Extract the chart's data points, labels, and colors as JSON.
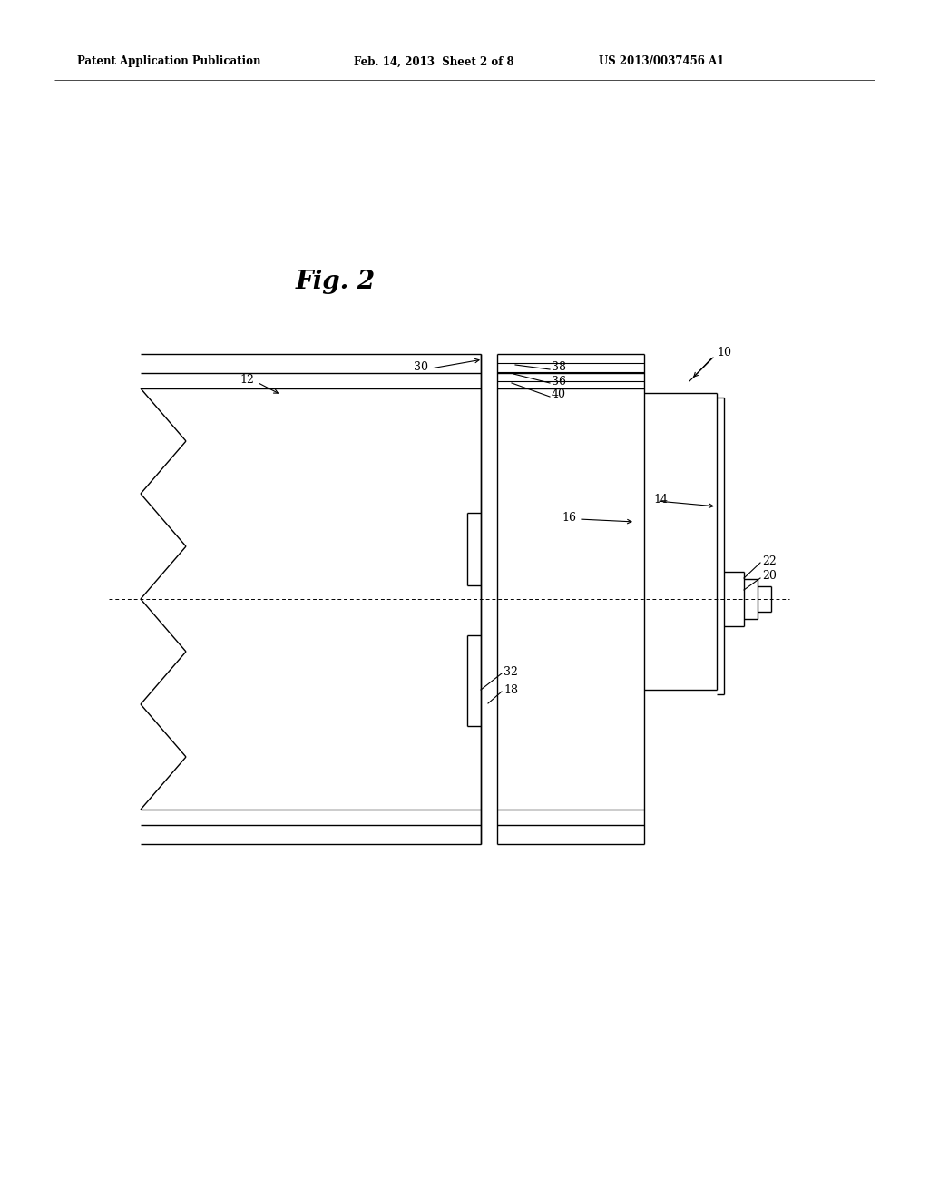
{
  "bg_color": "#ffffff",
  "line_color": "#000000",
  "header_left": "Patent Application Publication",
  "header_mid": "Feb. 14, 2013  Sheet 2 of 8",
  "header_right": "US 2013/0037456 A1",
  "fig_label": "Fig. 2",
  "lw": 1.0
}
